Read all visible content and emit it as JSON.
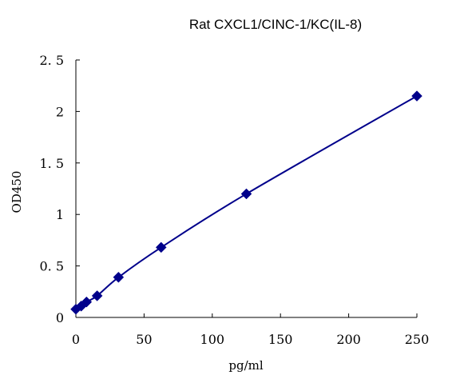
{
  "chart_data": {
    "type": "scatter",
    "title": "Rat  CXCL1/CINC-1/KC(IL-8)",
    "xlabel": "pg/ml",
    "ylabel": "OD450",
    "xlim": [
      0,
      250
    ],
    "ylim": [
      0,
      2.5
    ],
    "x_ticks": [
      {
        "value": 0,
        "label": "0"
      },
      {
        "value": 50,
        "label": "50"
      },
      {
        "value": 100,
        "label": "100"
      },
      {
        "value": 150,
        "label": "150"
      },
      {
        "value": 200,
        "label": "200"
      },
      {
        "value": 250,
        "label": "250"
      }
    ],
    "y_ticks": [
      {
        "value": 0,
        "label": "0"
      },
      {
        "value": 0.5,
        "label": "0. 5"
      },
      {
        "value": 1,
        "label": "1"
      },
      {
        "value": 1.5,
        "label": "1. 5"
      },
      {
        "value": 2,
        "label": "2"
      },
      {
        "value": 2.5,
        "label": "2. 5"
      }
    ],
    "grid": false,
    "trendline": true,
    "series": [
      {
        "marker": "diamond",
        "color": "#00008B",
        "points": [
          {
            "x": 0,
            "y": 0.08
          },
          {
            "x": 3.9,
            "y": 0.11
          },
          {
            "x": 7.8,
            "y": 0.15
          },
          {
            "x": 15.6,
            "y": 0.21
          },
          {
            "x": 31.25,
            "y": 0.39
          },
          {
            "x": 62.5,
            "y": 0.68
          },
          {
            "x": 125,
            "y": 1.2
          },
          {
            "x": 250,
            "y": 2.15
          }
        ]
      }
    ]
  }
}
